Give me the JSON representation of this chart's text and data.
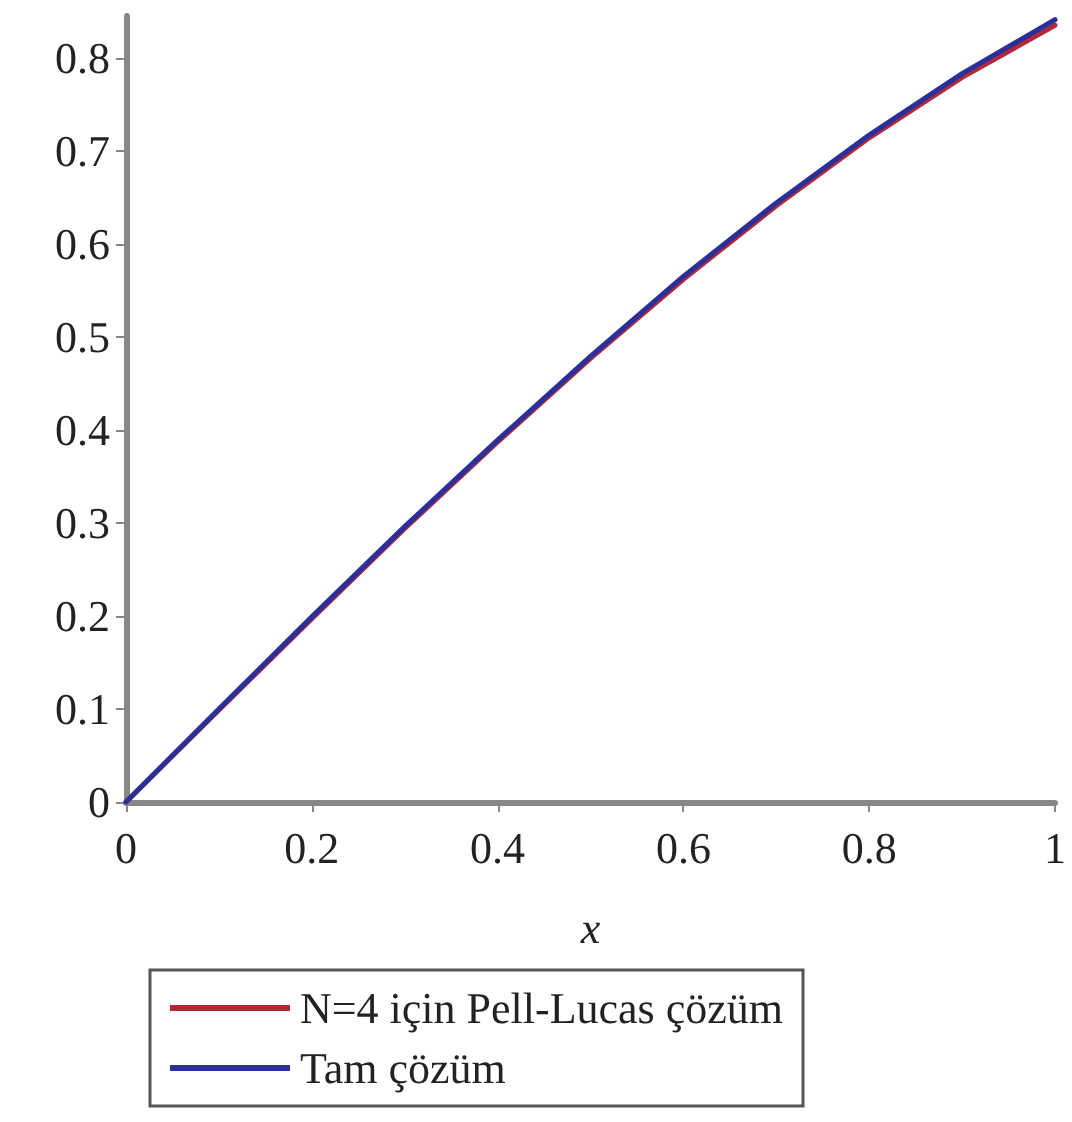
{
  "chart_data": {
    "type": "line",
    "xlabel": "x",
    "x": [
      0,
      0.1,
      0.2,
      0.3,
      0.4,
      0.5,
      0.6,
      0.7,
      0.8,
      0.9,
      1
    ],
    "series": [
      {
        "name": "N=4 için Pell-Lucas çözüm",
        "color": "#b22a3a",
        "values": [
          0,
          0.099,
          0.197,
          0.294,
          0.387,
          0.477,
          0.562,
          0.641,
          0.714,
          0.779,
          0.835
        ]
      },
      {
        "name": "Tam çözüm",
        "color": "#2a2f9a",
        "values": [
          0,
          0.1,
          0.199,
          0.296,
          0.389,
          0.479,
          0.565,
          0.644,
          0.717,
          0.783,
          0.841
        ]
      }
    ],
    "xlim": [
      0,
      1
    ],
    "xticks": [
      0,
      0.2,
      0.4,
      0.6,
      0.8,
      1
    ],
    "ylim": [
      0,
      0.845
    ],
    "yticks": [
      0,
      0.1,
      0.2,
      0.3,
      0.4,
      0.5,
      0.6,
      0.7,
      0.8
    ],
    "grid": false,
    "legend": "bottom",
    "marker": "none",
    "line_style": "solid"
  }
}
